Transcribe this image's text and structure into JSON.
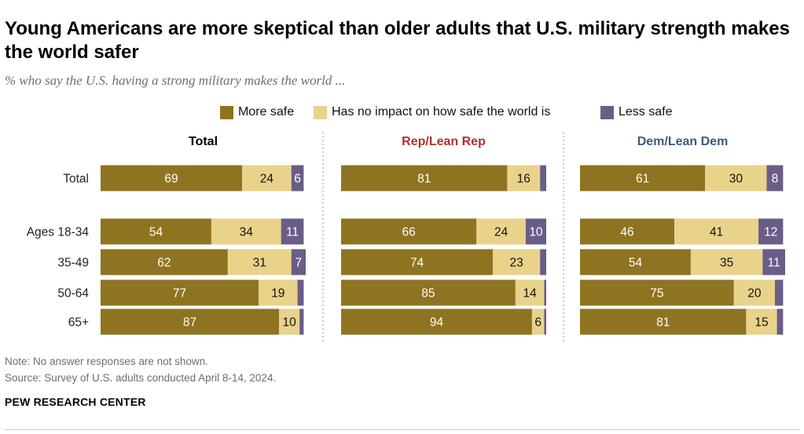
{
  "title": "Young Americans are more skeptical than older adults that U.S. military strength makes the world safer",
  "subtitle": "% who say the U.S. having a strong military makes the world ...",
  "legend": {
    "more_safe": "More safe",
    "no_impact": "Has no impact on how safe the world is",
    "less_safe": "Less safe"
  },
  "colors": {
    "more_safe": "#8e7420",
    "no_impact": "#e9d38a",
    "less_safe": "#6a5d87",
    "rep_header": "#b22f2f",
    "dem_header": "#3b5b7b",
    "total_header": "#000000"
  },
  "chart_data": {
    "type": "bar",
    "orientation": "horizontal",
    "stacked": true,
    "title": "Young Americans are more skeptical than older adults that U.S. military strength makes the world safer",
    "subtitle": "% who say the U.S. having a strong military makes the world ...",
    "categories": [
      "Total",
      "Ages 18-34",
      "35-49",
      "50-64",
      "65+"
    ],
    "series_names": [
      "More safe",
      "Has no impact on how safe the world is",
      "Less safe"
    ],
    "panels": [
      {
        "name": "Total",
        "values": [
          [
            69,
            24,
            6
          ],
          [
            54,
            34,
            11
          ],
          [
            62,
            31,
            7
          ],
          [
            77,
            19,
            3
          ],
          [
            87,
            10,
            2
          ]
        ],
        "labels": [
          [
            "69",
            "24",
            "6"
          ],
          [
            "54",
            "34",
            "11"
          ],
          [
            "62",
            "31",
            "7"
          ],
          [
            "77",
            "19",
            ""
          ],
          [
            "87",
            "10",
            ""
          ]
        ]
      },
      {
        "name": "Rep/Lean Rep",
        "values": [
          [
            81,
            16,
            3
          ],
          [
            66,
            24,
            10
          ],
          [
            74,
            23,
            3
          ],
          [
            85,
            14,
            1
          ],
          [
            94,
            6,
            1
          ]
        ],
        "labels": [
          [
            "81",
            "16",
            ""
          ],
          [
            "66",
            "24",
            "10"
          ],
          [
            "74",
            "23",
            ""
          ],
          [
            "85",
            "14",
            ""
          ],
          [
            "94",
            "6",
            ""
          ]
        ]
      },
      {
        "name": "Dem/Lean Dem",
        "values": [
          [
            61,
            30,
            8
          ],
          [
            46,
            41,
            12
          ],
          [
            54,
            35,
            11
          ],
          [
            75,
            20,
            4
          ],
          [
            81,
            15,
            3
          ]
        ],
        "labels": [
          [
            "61",
            "30",
            "8"
          ],
          [
            "46",
            "41",
            "12"
          ],
          [
            "54",
            "35",
            "11"
          ],
          [
            "75",
            "20",
            ""
          ],
          [
            "81",
            "15",
            ""
          ]
        ]
      }
    ],
    "xlim": [
      0,
      100
    ]
  },
  "footer": {
    "note": "Note: No answer responses are not shown.",
    "source": "Source: Survey of U.S. adults conducted April 8-14, 2024.",
    "brand": "PEW RESEARCH CENTER"
  }
}
